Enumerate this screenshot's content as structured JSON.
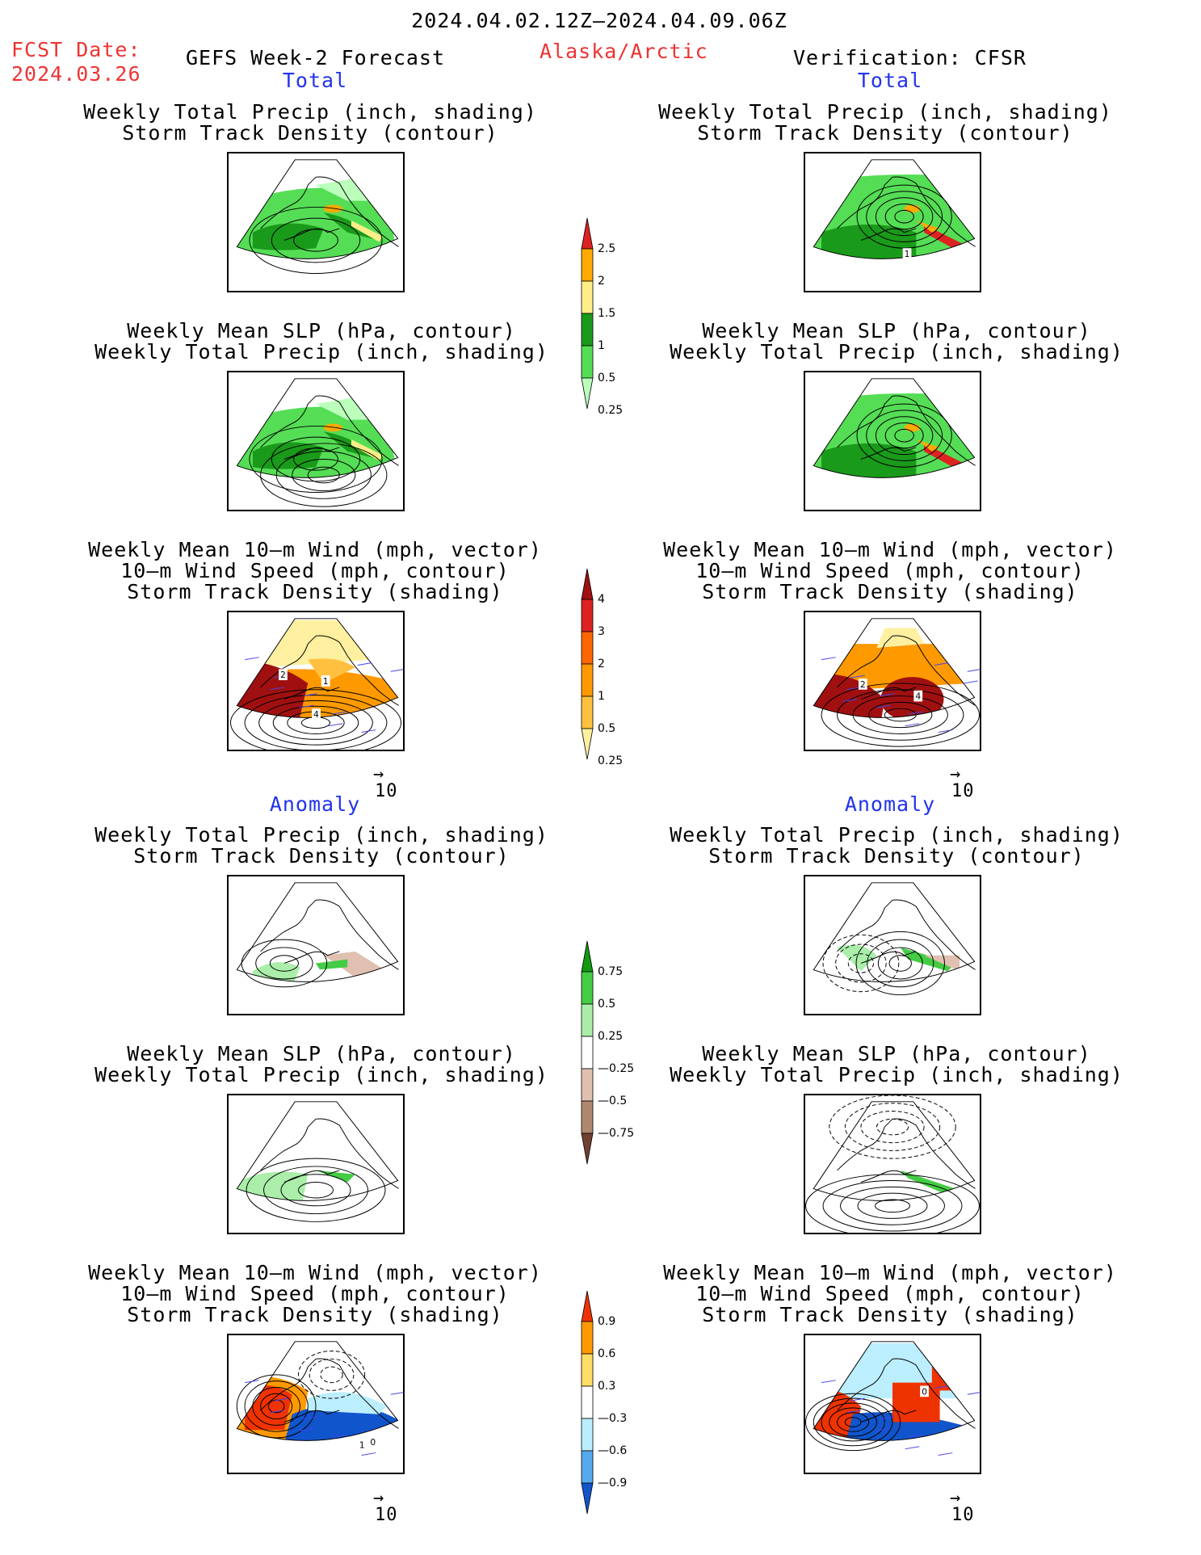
{
  "header": {
    "period": "2024.04.02.12Z—2024.04.09.06Z",
    "fcst_label": "FCST Date:",
    "fcst_date": "2024.03.26",
    "forecast_title": "GEFS Week-2 Forecast",
    "region": "Alaska/Arctic",
    "verification": "Verification: CFSR"
  },
  "sections": {
    "total": "Total",
    "anomaly": "Anomaly"
  },
  "titles": {
    "precip_storm": [
      "Weekly Total Precip (inch, shading)",
      "Storm Track Density (contour)"
    ],
    "slp_precip": [
      "Weekly Mean SLP (hPa, contour)",
      "Weekly Total Precip (inch, shading)"
    ],
    "wind_storm": [
      "Weekly Mean 10—m Wind (mph, vector)",
      "10—m Wind Speed (mph, contour)",
      "Storm Track Density (shading)"
    ]
  },
  "vector_ref": "10",
  "colorbars": {
    "precip_total": {
      "labels": [
        "2.5",
        "2",
        "1.5",
        "1",
        "0.5",
        "0.25"
      ],
      "colors": [
        "#dd2222",
        "#ffaa00",
        "#ffee88",
        "#1a9a1a",
        "#55dd55",
        "#bbffbb"
      ]
    },
    "storm_total": {
      "labels": [
        "4",
        "3",
        "2",
        "1",
        "0.5",
        "0.25"
      ],
      "colors": [
        "#a01010",
        "#dd2222",
        "#ff6600",
        "#ff9900",
        "#ffc040",
        "#fff0a0"
      ]
    },
    "precip_anom": {
      "labels": [
        "0.75",
        "0.5",
        "0.25",
        "—0.25",
        "—0.5",
        "—0.75"
      ],
      "colors": [
        "#119911",
        "#44cc44",
        "#aaeeaa",
        "#ffffff",
        "#e0c0b0",
        "#b08870",
        "#704030"
      ]
    },
    "storm_anom": {
      "labels": [
        "0.9",
        "0.6",
        "0.3",
        "—0.3",
        "—0.6",
        "—0.9"
      ],
      "colors": [
        "#ee3300",
        "#ff9900",
        "#ffdd66",
        "#ffffff",
        "#bbeeff",
        "#55aaee",
        "#1155cc"
      ]
    }
  },
  "panel_labels": {
    "fcst_storm_total": [
      "1",
      "2",
      "4"
    ],
    "obs_storm_total": [
      "2",
      "4"
    ],
    "obs_precip_total": [
      "1"
    ],
    "fcst_storm_anom": [
      "1",
      "0"
    ],
    "obs_storm_anom": [
      "0"
    ]
  }
}
